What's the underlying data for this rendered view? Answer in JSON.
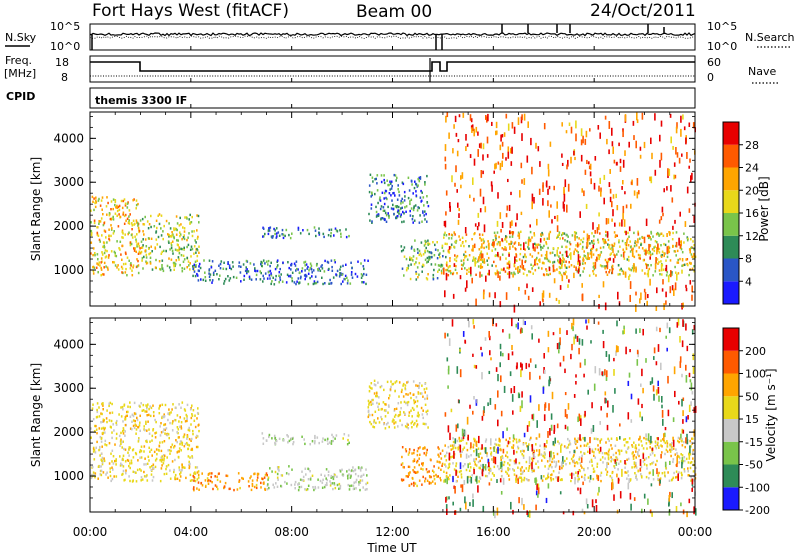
{
  "header": {
    "station": "Fort Hays West (fitACF)",
    "beam": "Beam 00",
    "date": "24/Oct/2011"
  },
  "strips": {
    "noise_sky_label": "N.Sky",
    "noise_search_label": "N.Search",
    "noise_ticks": [
      "10^5",
      "10^0"
    ],
    "freq_label": "Freq.",
    "freq_unit": "[MHz]",
    "freq_ticks": [
      "18",
      "8"
    ],
    "nave_label": "Nave",
    "nave_ticks": [
      "60",
      "0"
    ],
    "cpid_label": "CPID",
    "cpid_value": "themis 3300 IF"
  },
  "chart_data": [
    {
      "type": "heatmap",
      "quantity": "Power",
      "colorbar_label": "Power [dB]",
      "colorbar_ticks": [
        28,
        24,
        20,
        16,
        12,
        8,
        4
      ],
      "colorbar_colors": [
        "#1a1aff",
        "#2a56c6",
        "#2e8b57",
        "#79c44a",
        "#e8d81a",
        "#ffa500",
        "#ff5a00",
        "#e80000"
      ],
      "xlabel": "Time UT",
      "ylabel": "Slant Range [km]",
      "xlim": [
        0,
        24
      ],
      "ylim": [
        180,
        4600
      ],
      "xticks": [
        "00:00",
        "04:00",
        "08:00",
        "12:00",
        "16:00",
        "20:00",
        "00:00"
      ],
      "yticks": [
        1000,
        2000,
        3000,
        4000
      ],
      "echo_regions": [
        {
          "t0": 0.0,
          "t1": 2.0,
          "r0": 900,
          "r1": 2700,
          "value": 20
        },
        {
          "t0": 2.0,
          "t1": 4.3,
          "r0": 1000,
          "r1": 2300,
          "value": 16
        },
        {
          "t0": 4.0,
          "t1": 11.0,
          "r0": 700,
          "r1": 1250,
          "value": 8
        },
        {
          "t0": 6.8,
          "t1": 10.3,
          "r0": 1750,
          "r1": 2000,
          "value": 8
        },
        {
          "t0": 11.0,
          "t1": 13.4,
          "r0": 2100,
          "r1": 3200,
          "value": 8
        },
        {
          "t0": 12.3,
          "t1": 14.0,
          "r0": 800,
          "r1": 1700,
          "value": 14
        },
        {
          "t0": 14.0,
          "t1": 24.0,
          "r0": 900,
          "r1": 1900,
          "value": 18
        },
        {
          "t0": 14.0,
          "t1": 24.0,
          "r0": 180,
          "r1": 4600,
          "value": 26
        }
      ]
    },
    {
      "type": "heatmap",
      "quantity": "Velocity",
      "colorbar_label": "Velocity [m s⁻¹]",
      "colorbar_ticks": [
        200,
        100,
        50,
        15,
        -15,
        -50,
        -100,
        -200
      ],
      "colorbar_colors": [
        "#1a1aff",
        "#2e8b57",
        "#79c44a",
        "#c8c8c8",
        "#e8d81a",
        "#ffa500",
        "#ff5a00",
        "#e80000"
      ],
      "xlabel": "Time UT",
      "ylabel": "Slant Range [km]",
      "xlim": [
        0,
        24
      ],
      "ylim": [
        180,
        4600
      ],
      "xticks": [
        "00:00",
        "04:00",
        "08:00",
        "12:00",
        "16:00",
        "20:00",
        "00:00"
      ],
      "yticks": [
        1000,
        2000,
        3000,
        4000
      ],
      "echo_regions": [
        {
          "t0": 0.0,
          "t1": 4.3,
          "r0": 900,
          "r1": 2700,
          "value": 0
        },
        {
          "t0": 4.0,
          "t1": 7.0,
          "r0": 700,
          "r1": 1100,
          "value": 40
        },
        {
          "t0": 7.0,
          "t1": 11.0,
          "r0": 700,
          "r1": 1250,
          "value": -40
        },
        {
          "t0": 6.8,
          "t1": 10.3,
          "r0": 1750,
          "r1": 2000,
          "value": -40
        },
        {
          "t0": 11.0,
          "t1": 13.4,
          "r0": 2100,
          "r1": 3200,
          "value": 0
        },
        {
          "t0": 12.3,
          "t1": 14.0,
          "r0": 800,
          "r1": 1700,
          "value": 40
        },
        {
          "t0": 14.0,
          "t1": 24.0,
          "r0": 900,
          "r1": 1900,
          "value": 0
        },
        {
          "t0": 14.0,
          "t1": 24.0,
          "r0": 180,
          "r1": 4600,
          "value": 0
        }
      ]
    }
  ]
}
